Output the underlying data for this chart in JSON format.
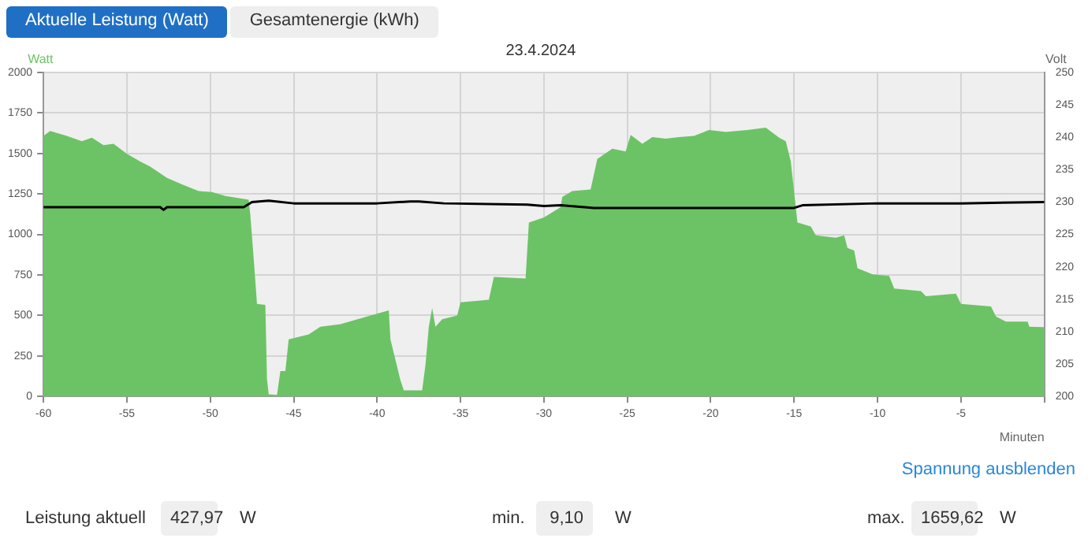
{
  "chart_data": {
    "type": "area",
    "title": "23.4.2024",
    "xlabel": "Minuten",
    "ylabel": "Watt",
    "y2label": "Volt",
    "annotations": [
      "Aktuelle Leistung (Watt)",
      "Gesamtenergie (kWh)",
      "Spannung ausblenden",
      "Leistung aktuell",
      "427,97",
      "W",
      "min.",
      "9,10",
      "W",
      "max.",
      "1659,62",
      "W"
    ],
    "xlim": [
      -60,
      0
    ],
    "xticks": [
      -60,
      -55,
      -50,
      -45,
      -40,
      -35,
      -30,
      -25,
      -20,
      -15,
      -10,
      -5,
      {
        "value": 0,
        "label": null
      }
    ],
    "ylim": [
      0,
      2000
    ],
    "yticks": [
      0,
      250,
      500,
      750,
      1000,
      1250,
      1500,
      1750,
      2000
    ],
    "y2lim": [
      200,
      250
    ],
    "y2ticks": [
      200,
      205,
      210,
      215,
      220,
      225,
      230,
      235,
      240,
      245,
      250
    ],
    "grid": true,
    "legend": false,
    "series": [
      {
        "color": "#6cc365",
        "x": [
          -60,
          -59.6,
          -58.6,
          -57.7,
          -57.1,
          -56.4,
          -55.8,
          -55,
          -54.2,
          -53.6,
          -52.6,
          -51.7,
          -50.7,
          -49.9,
          -49.1,
          -47.7,
          -47.6,
          -47.4,
          -47.2,
          -46.7,
          -46.6,
          -46.5,
          -46,
          -45.8,
          -45.5,
          -45.3,
          -44.1,
          -43.4,
          -42.2,
          -40.6,
          -39.3,
          -39.2,
          -38.6,
          -38.4,
          -37.3,
          -37.1,
          -36.9,
          -36.7,
          -36.5,
          -36.1,
          -35.2,
          -35,
          -33.3,
          -33,
          -31.1,
          -30.9,
          -30,
          -29.5,
          -29,
          -28.9,
          -28.3,
          -27.2,
          -26.8,
          -25.9,
          -25.1,
          -24.8,
          -24.1,
          -23.5,
          -22.7,
          -21.9,
          -21,
          -20.1,
          -19.1,
          -17.8,
          -16.7,
          -15.9,
          -15.5,
          -15.2,
          -14.8,
          -14,
          -13.7,
          -12.5,
          -12,
          -11.8,
          -11.4,
          -11.2,
          -10.3,
          -9.3,
          -9,
          -7.4,
          -7.1,
          -5.3,
          -5,
          -3.2,
          -2.9,
          -2.3,
          -1,
          -0.9,
          0
        ],
        "values": [
          1608,
          1639,
          1608,
          1576,
          1598,
          1551,
          1560,
          1498,
          1450,
          1419,
          1350,
          1309,
          1268,
          1262,
          1237,
          1215,
          1121,
          854,
          571,
          565,
          107,
          13,
          9.1,
          157,
          157,
          352,
          383,
          430,
          446,
          493,
          531,
          352,
          100,
          38,
          38,
          195,
          430,
          546,
          430,
          477,
          499,
          581,
          597,
          738,
          728,
          1074,
          1105,
          1137,
          1168,
          1231,
          1268,
          1278,
          1466,
          1529,
          1513,
          1614,
          1560,
          1601,
          1592,
          1601,
          1608,
          1645,
          1633,
          1645,
          1659.62,
          1598,
          1576,
          1450,
          1074,
          1049,
          995,
          980,
          995,
          917,
          901,
          791,
          754,
          744,
          666,
          650,
          619,
          634,
          571,
          556,
          493,
          462,
          462,
          430,
          427.97
        ]
      },
      {
        "type": "line",
        "axis": "y2",
        "color": "#000000",
        "x": [
          -60,
          -53,
          -52.8,
          -52.6,
          -48,
          -47.5,
          -46.5,
          -45,
          -40,
          -38,
          -37.5,
          -36,
          -31,
          -30,
          -29,
          -27,
          -15,
          -14.5,
          -10,
          -5,
          0
        ],
        "values": [
          229.2,
          229.2,
          228.8,
          229.2,
          229.2,
          230.0,
          230.2,
          229.8,
          229.8,
          230.1,
          230.1,
          229.8,
          229.6,
          229.4,
          229.5,
          229.1,
          229.1,
          229.5,
          229.8,
          229.8,
          230.0
        ]
      }
    ]
  }
}
